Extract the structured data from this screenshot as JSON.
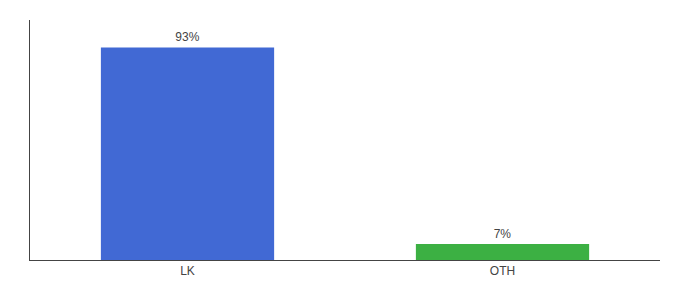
{
  "chart_data": {
    "type": "bar",
    "categories": [
      "LK",
      "OTH"
    ],
    "values": [
      93,
      7
    ],
    "value_labels": [
      "93%",
      "7%"
    ],
    "data_labels": true,
    "colors": [
      "#4169d4",
      "#3cb043"
    ],
    "ylim": [
      0,
      105
    ],
    "yticks": [],
    "tick_labels": "x",
    "grid": false
  }
}
